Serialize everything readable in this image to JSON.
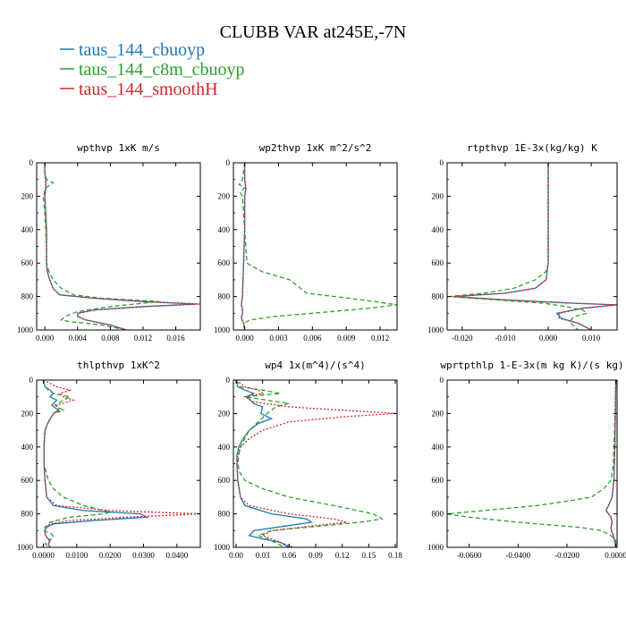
{
  "figure": {
    "title": "CLUBB VAR at245E,-7N"
  },
  "legend": [
    {
      "label": "taus_144_cbuoyp",
      "color": "#1f77b4",
      "dash": "solid"
    },
    {
      "label": "taus_144_c8m_cbuoyp",
      "color": "#2ca02c",
      "dash": "dashed"
    },
    {
      "label": "taus_144_smoothH",
      "color": "#d62728",
      "dash": "dotted"
    }
  ],
  "chart_data": [
    {
      "type": "line",
      "title": "wpthvp  1xK m/s",
      "xlim": [
        -0.001,
        0.019
      ],
      "ylim": [
        1000,
        0
      ],
      "xticks": [
        0.0,
        0.004,
        0.008,
        0.012,
        0.016
      ],
      "xticklabels": [
        "0.000",
        "0.004",
        "0.008",
        "0.012",
        "0.016"
      ],
      "yticks": [
        0,
        200,
        400,
        600,
        800,
        1000
      ],
      "series": [
        {
          "name": "taus_144_cbuoyp",
          "y": [
            0,
            60,
            100,
            150,
            200,
            300,
            400,
            500,
            600,
            650,
            700,
            750,
            790,
            810,
            830,
            845,
            860,
            880,
            900,
            920,
            940,
            970,
            1000
          ],
          "x": [
            0.0,
            0.0,
            0.0001,
            0.0001,
            0.0,
            0.0001,
            0.0002,
            0.0002,
            0.0002,
            0.0003,
            0.0006,
            0.001,
            0.0018,
            0.006,
            0.012,
            0.0185,
            0.012,
            0.006,
            0.004,
            0.004,
            0.005,
            0.008,
            0.01
          ]
        },
        {
          "name": "taus_144_c8m_cbuoyp",
          "y": [
            0,
            60,
            100,
            120,
            150,
            200,
            300,
            400,
            500,
            600,
            650,
            700,
            750,
            790,
            810,
            830,
            860,
            890,
            920,
            940,
            950,
            970,
            1000
          ],
          "x": [
            0.0,
            0.0,
            0.0002,
            0.001,
            0.0001,
            -0.0002,
            0.0,
            0.0001,
            0.0002,
            0.0002,
            0.0005,
            0.001,
            0.002,
            0.0035,
            0.007,
            0.014,
            0.008,
            0.004,
            0.0025,
            0.002,
            0.003,
            0.007,
            0.01
          ]
        },
        {
          "name": "taus_144_smoothH",
          "y": [
            0,
            60,
            100,
            150,
            200,
            300,
            400,
            500,
            600,
            650,
            700,
            750,
            790,
            810,
            830,
            845,
            860,
            880,
            900,
            920,
            940,
            970,
            1000
          ],
          "x": [
            0.0,
            0.0,
            0.0001,
            0.0001,
            0.0,
            0.0001,
            0.0002,
            0.0002,
            0.0002,
            0.0003,
            0.0006,
            0.001,
            0.0018,
            0.006,
            0.0125,
            0.019,
            0.0125,
            0.0062,
            0.0041,
            0.004,
            0.005,
            0.008,
            0.01
          ]
        }
      ]
    },
    {
      "type": "line",
      "title": "wp2thvp  1xK m^2/s^2",
      "xlim": [
        -0.001,
        0.0135
      ],
      "ylim": [
        1000,
        0
      ],
      "xticks": [
        0.0,
        0.003,
        0.006,
        0.009,
        0.012
      ],
      "xticklabels": [
        "0.000",
        "0.003",
        "0.006",
        "0.009",
        "0.012"
      ],
      "yticks": [
        0,
        200,
        400,
        600,
        800,
        1000
      ],
      "series": [
        {
          "name": "taus_144_cbuoyp",
          "y": [
            0,
            100,
            150,
            200,
            400,
            600,
            800,
            850,
            870,
            900,
            930,
            960,
            1000
          ],
          "x": [
            0.0,
            0.0,
            0.0001,
            0.0,
            0.0,
            -0.0001,
            -0.0002,
            -0.0003,
            -0.0002,
            -0.0002,
            -0.0003,
            -0.0001,
            0.0
          ]
        },
        {
          "name": "taus_144_c8m_cbuoyp",
          "y": [
            0,
            100,
            130,
            150,
            180,
            200,
            400,
            600,
            650,
            700,
            780,
            800,
            830,
            850,
            870,
            900,
            920,
            940,
            960,
            980,
            1000
          ],
          "x": [
            0.0,
            -0.0002,
            -0.0005,
            0.0,
            -0.0004,
            -0.0002,
            0.0,
            0.0002,
            0.0015,
            0.004,
            0.0055,
            0.008,
            0.0115,
            0.0135,
            0.011,
            0.006,
            0.0025,
            0.0005,
            -0.0001,
            0.0,
            0.0
          ]
        },
        {
          "name": "taus_144_smoothH",
          "y": [
            0,
            100,
            150,
            200,
            400,
            600,
            800,
            850,
            870,
            900,
            930,
            960,
            1000
          ],
          "x": [
            0.0,
            0.0,
            0.0001,
            0.0,
            0.0,
            -0.0001,
            -0.0002,
            -0.0003,
            -0.0002,
            -0.0002,
            -0.0003,
            -0.0001,
            0.0
          ]
        }
      ]
    },
    {
      "type": "line",
      "title": "rtpthvp  1E-3x(kg/kg) K",
      "xlim": [
        -0.0235,
        0.016
      ],
      "ylim": [
        1000,
        0
      ],
      "xticks": [
        -0.02,
        -0.01,
        0.0,
        0.01
      ],
      "xticklabels": [
        "-0.020",
        "-0.010",
        "0.000",
        "0.010"
      ],
      "yticks": [
        0,
        200,
        400,
        600,
        800,
        1000
      ],
      "series": [
        {
          "name": "taus_144_cbuoyp",
          "y": [
            0,
            200,
            400,
            600,
            700,
            750,
            780,
            800,
            820,
            840,
            850,
            870,
            900,
            930,
            960,
            1000
          ],
          "x": [
            0.0,
            0.0,
            0.0,
            0.0,
            -0.0005,
            -0.003,
            -0.01,
            -0.022,
            -0.01,
            0.006,
            0.016,
            0.008,
            0.002,
            0.003,
            0.007,
            0.01
          ]
        },
        {
          "name": "taus_144_c8m_cbuoyp",
          "y": [
            0,
            200,
            400,
            600,
            650,
            700,
            750,
            780,
            800,
            820,
            840,
            860,
            880,
            900,
            920,
            950,
            980,
            1000
          ],
          "x": [
            0.0,
            0.0,
            0.0,
            0.0,
            -0.0005,
            -0.003,
            -0.008,
            -0.015,
            -0.023,
            -0.012,
            -0.001,
            0.004,
            0.008,
            0.009,
            0.006,
            0.005,
            0.006,
            0.007
          ]
        },
        {
          "name": "taus_144_smoothH",
          "y": [
            0,
            200,
            400,
            600,
            700,
            750,
            780,
            800,
            820,
            840,
            850,
            870,
            900,
            930,
            960,
            1000
          ],
          "x": [
            0.0,
            0.0,
            0.0,
            0.0,
            -0.0005,
            -0.003,
            -0.01,
            -0.0225,
            -0.0105,
            0.006,
            0.016,
            0.008,
            0.0025,
            0.0025,
            0.007,
            0.01
          ]
        }
      ]
    },
    {
      "type": "line",
      "title": "thlpthvp  1xK^2",
      "xlim": [
        -0.002,
        0.047
      ],
      "ylim": [
        1000,
        0
      ],
      "xticks": [
        0.0,
        0.01,
        0.02,
        0.03,
        0.04
      ],
      "xticklabels": [
        "0.0000",
        "0.0100",
        "0.0200",
        "0.0300",
        "0.0400"
      ],
      "yticks": [
        0,
        200,
        400,
        600,
        800,
        1000
      ],
      "series": [
        {
          "name": "taus_144_cbuoyp",
          "y": [
            0,
            40,
            60,
            80,
            100,
            120,
            150,
            180,
            200,
            250,
            300,
            400,
            500,
            600,
            700,
            750,
            780,
            800,
            820,
            840,
            860,
            880,
            900,
            920,
            940,
            960,
            980,
            1000
          ],
          "x": [
            0.0,
            0.0005,
            0.002,
            0.003,
            0.002,
            0.004,
            0.0025,
            0.0045,
            0.003,
            0.0015,
            0.0005,
            0.0002,
            0.0002,
            0.0005,
            0.001,
            0.003,
            0.012,
            0.029,
            0.031,
            0.015,
            0.003,
            0.001,
            0.0005,
            0.0005,
            0.001,
            0.002,
            0.0015,
            0.002
          ]
        },
        {
          "name": "taus_144_c8m_cbuoyp",
          "y": [
            0,
            40,
            60,
            80,
            100,
            120,
            150,
            180,
            200,
            250,
            300,
            400,
            500,
            600,
            650,
            700,
            750,
            790,
            800,
            820,
            850,
            880,
            900,
            920,
            940,
            960,
            980,
            1000
          ],
          "x": [
            0.0,
            0.0005,
            0.0015,
            0.003,
            0.008,
            0.006,
            0.0035,
            0.006,
            0.003,
            0.0015,
            0.0005,
            0.0002,
            0.0002,
            0.0015,
            0.003,
            0.006,
            0.012,
            0.02,
            0.018,
            0.008,
            0.002,
            0.0005,
            0.0,
            0.0025,
            0.003,
            0.0015,
            0.0005,
            0.002
          ]
        },
        {
          "name": "taus_144_smoothH",
          "y": [
            0,
            40,
            60,
            80,
            100,
            120,
            150,
            180,
            200,
            250,
            300,
            400,
            500,
            600,
            700,
            750,
            780,
            800,
            820,
            840,
            860,
            880,
            900,
            920,
            940,
            960,
            980,
            1000
          ],
          "x": [
            0.0,
            0.004,
            0.008,
            0.005,
            0.006,
            0.009,
            0.004,
            0.005,
            0.003,
            0.0015,
            0.0005,
            0.0002,
            0.0002,
            0.0005,
            0.001,
            0.004,
            0.02,
            0.047,
            0.025,
            0.008,
            0.002,
            0.001,
            0.0005,
            0.0005,
            0.001,
            0.002,
            0.0015,
            0.002
          ]
        }
      ]
    },
    {
      "type": "line",
      "title": "wp4  1x(m^4)/(s^4)",
      "xlim": [
        -0.003,
        0.182
      ],
      "ylim": [
        1000,
        0
      ],
      "xticks": [
        0.0,
        0.03,
        0.06,
        0.09,
        0.12,
        0.15,
        0.18
      ],
      "xticklabels": [
        "0.00",
        "0.03",
        "0.06",
        "0.09",
        "0.12",
        "0.15",
        "0.18"
      ],
      "yticks": [
        0,
        200,
        400,
        600,
        800,
        1000
      ],
      "series": [
        {
          "name": "taus_144_cbuoyp",
          "y": [
            0,
            40,
            60,
            80,
            100,
            140,
            160,
            200,
            230,
            260,
            300,
            350,
            400,
            450,
            500,
            600,
            700,
            750,
            800,
            830,
            850,
            870,
            900,
            930,
            950,
            970,
            1000
          ],
          "x": [
            0.0,
            0.002,
            0.01,
            0.02,
            0.012,
            0.02,
            0.03,
            0.028,
            0.04,
            0.025,
            0.015,
            0.008,
            0.003,
            0.001,
            0.001,
            0.002,
            0.005,
            0.01,
            0.04,
            0.08,
            0.085,
            0.06,
            0.02,
            0.015,
            0.03,
            0.05,
            0.06
          ]
        },
        {
          "name": "taus_144_c8m_cbuoyp",
          "y": [
            0,
            40,
            60,
            80,
            100,
            140,
            160,
            200,
            250,
            300,
            350,
            400,
            450,
            500,
            550,
            600,
            650,
            700,
            750,
            800,
            830,
            850,
            880,
            900,
            930,
            960,
            1000
          ],
          "x": [
            0.0,
            0.005,
            0.03,
            0.05,
            0.01,
            0.06,
            0.045,
            0.035,
            0.025,
            0.015,
            0.01,
            0.005,
            0.003,
            0.002,
            0.004,
            0.01,
            0.03,
            0.06,
            0.11,
            0.155,
            0.165,
            0.14,
            0.08,
            0.04,
            0.025,
            0.04,
            0.055
          ]
        },
        {
          "name": "taus_144_smoothH",
          "y": [
            0,
            40,
            60,
            80,
            100,
            130,
            160,
            180,
            200,
            220,
            250,
            300,
            350,
            400,
            450,
            500,
            600,
            700,
            750,
            800,
            830,
            850,
            870,
            900,
            930,
            950,
            970,
            1000
          ],
          "x": [
            0.0,
            0.01,
            0.025,
            0.03,
            0.01,
            0.02,
            0.06,
            0.12,
            0.18,
            0.12,
            0.06,
            0.03,
            0.015,
            0.005,
            0.002,
            0.001,
            0.002,
            0.005,
            0.015,
            0.06,
            0.11,
            0.125,
            0.09,
            0.04,
            0.03,
            0.04,
            0.05,
            0.065
          ]
        }
      ]
    },
    {
      "type": "line",
      "title": "wprtpthlp  1-E-3x(m kg K)/(s kg)",
      "xlim": [
        -0.069,
        0.0005
      ],
      "ylim": [
        1000,
        0
      ],
      "xticks": [
        -0.06,
        -0.04,
        -0.02,
        0.0
      ],
      "xticklabels": [
        "-0.0600",
        "-0.0400",
        "-0.0200",
        "0.0000"
      ],
      "yticks": [
        0,
        200,
        400,
        600,
        800,
        1000
      ],
      "series": [
        {
          "name": "taus_144_cbuoyp",
          "y": [
            0,
            200,
            400,
            600,
            700,
            750,
            780,
            800,
            820,
            850,
            880,
            900,
            930,
            960,
            1000
          ],
          "x": [
            0.0,
            -0.0002,
            -0.0004,
            -0.0008,
            -0.0015,
            -0.003,
            -0.004,
            -0.003,
            -0.002,
            -0.0015,
            -0.002,
            -0.0018,
            -0.001,
            -0.0005,
            0.0
          ]
        },
        {
          "name": "taus_144_c8m_cbuoyp",
          "y": [
            0,
            200,
            400,
            500,
            600,
            650,
            700,
            720,
            750,
            780,
            800,
            820,
            850,
            880,
            900,
            930,
            960,
            1000
          ],
          "x": [
            0.0,
            -0.0003,
            -0.0008,
            -0.001,
            -0.002,
            -0.005,
            -0.01,
            -0.018,
            -0.032,
            -0.054,
            -0.069,
            -0.06,
            -0.04,
            -0.015,
            -0.006,
            -0.002,
            0.0,
            0.0
          ]
        },
        {
          "name": "taus_144_smoothH",
          "y": [
            0,
            200,
            400,
            600,
            700,
            750,
            780,
            800,
            820,
            850,
            880,
            900,
            930,
            960,
            1000
          ],
          "x": [
            0.0,
            -0.0002,
            -0.0004,
            -0.0008,
            -0.0015,
            -0.003,
            -0.004,
            -0.003,
            -0.002,
            -0.0015,
            -0.002,
            -0.0018,
            -0.001,
            -0.0005,
            0.0
          ]
        }
      ]
    }
  ]
}
